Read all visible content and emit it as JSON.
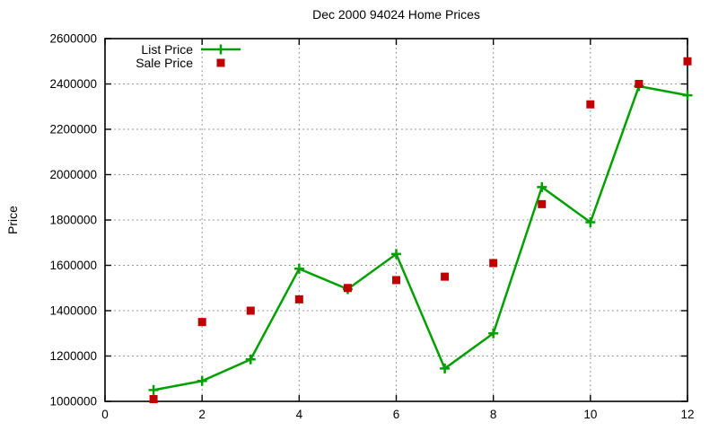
{
  "chart_data": {
    "type": "line",
    "title": "Dec 2000 94024 Home Prices",
    "xlabel": "",
    "ylabel": "Price",
    "xlim": [
      0,
      12
    ],
    "ylim": [
      1000000,
      2600000
    ],
    "xticks": [
      0,
      2,
      4,
      6,
      8,
      10,
      12
    ],
    "yticks": [
      1000000,
      1200000,
      1400000,
      1600000,
      1800000,
      2000000,
      2200000,
      2400000,
      2600000
    ],
    "grid": "dotted",
    "legend_position": "top-left-inside",
    "x": [
      1,
      2,
      3,
      4,
      5,
      6,
      7,
      8,
      9,
      10,
      11,
      12
    ],
    "series": [
      {
        "name": "List Price",
        "marker": "plus",
        "style": "line-with-points",
        "color": "#00a000",
        "values": [
          1050000,
          1090000,
          1185000,
          1585000,
          1495000,
          1650000,
          1145000,
          1300000,
          1945000,
          1790000,
          2390000,
          2350000
        ]
      },
      {
        "name": "Sale Price",
        "marker": "square",
        "style": "points-only",
        "color": "#c00000",
        "values": [
          1010000,
          1350000,
          1400000,
          1450000,
          1500000,
          1535000,
          1550000,
          1610000,
          1870000,
          2310000,
          2400000,
          2500000
        ]
      }
    ]
  }
}
